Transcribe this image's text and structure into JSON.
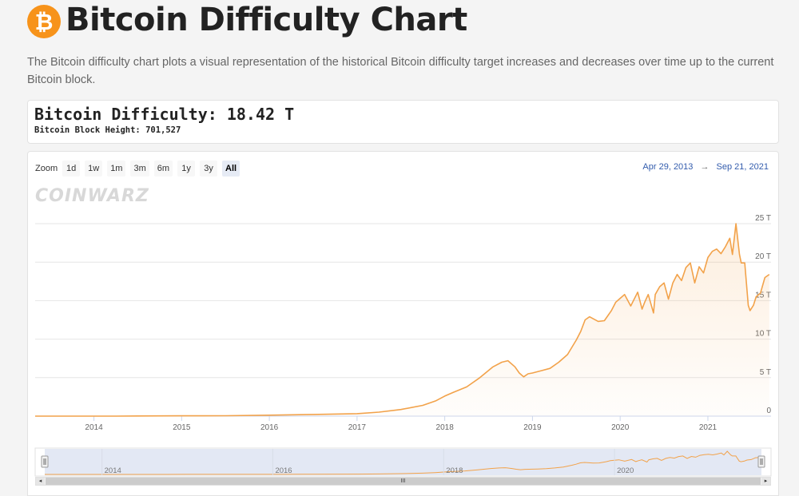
{
  "header": {
    "title": "Bitcoin Difficulty Chart",
    "intro": "The Bitcoin difficulty chart plots a visual representation of the historical Bitcoin difficulty target increases and decreases over time up to the current Bitcoin block.",
    "logo_icon": "bitcoin-icon",
    "logo_glyph": "₿",
    "logo_color": "#f7931a"
  },
  "stats": {
    "difficulty_label": "Bitcoin Difficulty: 18.42 T",
    "block_height_label": "Bitcoin Block Height: 701,527"
  },
  "controls": {
    "zoom_label": "Zoom",
    "zoom_buttons": [
      "1d",
      "1w",
      "1m",
      "3m",
      "6m",
      "1y",
      "3y",
      "All"
    ],
    "active_zoom": "All",
    "range_from": "Apr 29, 2013",
    "range_arrow": "→",
    "range_to": "Sep 21, 2021"
  },
  "watermark": "COINWARZ",
  "navigator": {
    "left_arrow": "◂",
    "right_arrow": "▸",
    "thumb_grip": "III",
    "labels": [
      "2014",
      "2016",
      "2018",
      "2020"
    ]
  },
  "chart_data": {
    "type": "area",
    "title": "",
    "xlabel": "",
    "ylabel": "",
    "line_color": "#f2a24a",
    "x_ticks": [
      "2014",
      "2015",
      "2016",
      "2017",
      "2018",
      "2019",
      "2020",
      "2021"
    ],
    "y_ticks": [
      "0",
      "5 T",
      "10 T",
      "15 T",
      "20 T",
      "25 T"
    ],
    "ylim": [
      0,
      25
    ],
    "xlim": [
      2013.33,
      2021.72
    ],
    "series": [
      {
        "x": [
          2013.33,
          2013.5,
          2013.75,
          2014.0,
          2014.25,
          2014.5,
          2014.75,
          2015.0,
          2015.5,
          2016.0,
          2016.5,
          2017.0,
          2017.25,
          2017.5,
          2017.75,
          2017.9,
          2018.0,
          2018.1,
          2018.25,
          2018.4,
          2018.55,
          2018.65,
          2018.72,
          2018.8,
          2018.85,
          2018.9,
          2018.95,
          2019.0,
          2019.1,
          2019.2,
          2019.3,
          2019.4,
          2019.5,
          2019.55,
          2019.6,
          2019.65,
          2019.75,
          2019.82,
          2019.9,
          2019.95,
          2020.0,
          2020.05,
          2020.12,
          2020.2,
          2020.25,
          2020.28,
          2020.32,
          2020.38,
          2020.4,
          2020.45,
          2020.5,
          2020.55,
          2020.6,
          2020.65,
          2020.7,
          2020.75,
          2020.8,
          2020.85,
          2020.9,
          2020.95,
          2021.0,
          2021.05,
          2021.1,
          2021.15,
          2021.2,
          2021.25,
          2021.28,
          2021.32,
          2021.36,
          2021.38,
          2021.42,
          2021.46,
          2021.48,
          2021.52,
          2021.55,
          2021.6,
          2021.65,
          2021.7
        ],
        "y": [
          1e-05,
          2e-05,
          0.0002,
          0.0018,
          0.005,
          0.016,
          0.035,
          0.044,
          0.052,
          0.12,
          0.22,
          0.32,
          0.52,
          0.86,
          1.4,
          2.0,
          2.6,
          3.1,
          3.8,
          5.0,
          6.4,
          7.0,
          7.2,
          6.4,
          5.6,
          5.1,
          5.5,
          5.6,
          5.9,
          6.2,
          7.0,
          8.0,
          9.9,
          11.0,
          12.5,
          12.9,
          12.3,
          12.4,
          13.7,
          14.8,
          15.3,
          15.8,
          14.3,
          16.1,
          13.9,
          14.8,
          15.8,
          13.4,
          15.8,
          16.8,
          17.3,
          15.2,
          17.3,
          18.4,
          17.6,
          19.3,
          19.9,
          17.3,
          19.4,
          18.6,
          20.6,
          21.4,
          21.7,
          21.1,
          22.0,
          23.1,
          21.0,
          25.0,
          21.0,
          19.9,
          19.9,
          14.4,
          13.7,
          14.4,
          15.5,
          16.0,
          18.0,
          18.4
        ]
      }
    ]
  }
}
